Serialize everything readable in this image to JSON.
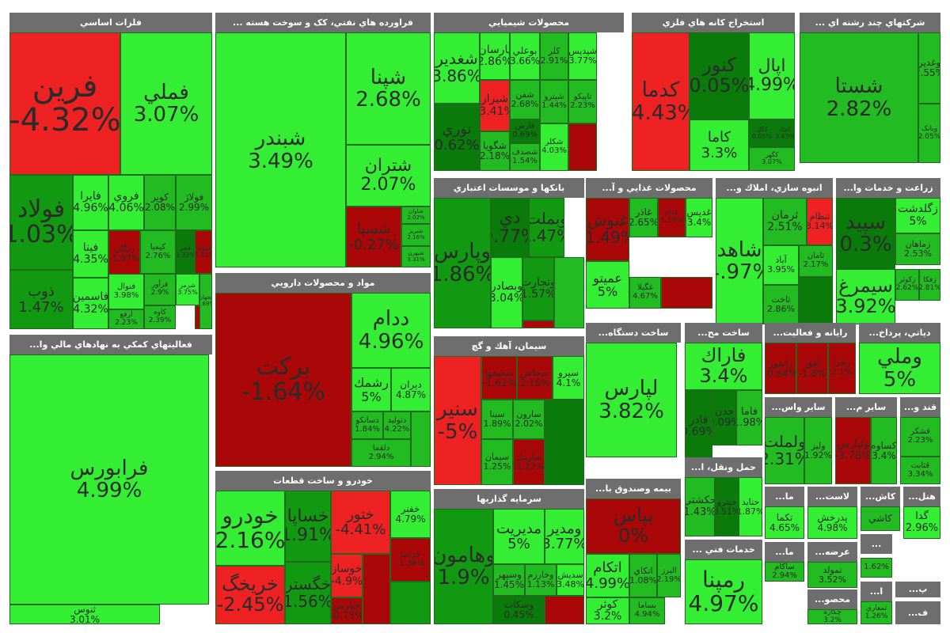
{
  "colors": {
    "bright_green": "#33ee33",
    "green": "#22bb22",
    "mid_green": "#119911",
    "dark_green": "#0a7a0a",
    "red": "#ee2222",
    "dark_red": "#aa0808",
    "header_bg": "#6e6e6e",
    "border": "#1f6a1f"
  },
  "sectors": [
    {
      "title": "فلزات اساسي",
      "tiles": [
        {
          "name": "فرين",
          "pct": "-4.32%",
          "c": "red"
        },
        {
          "name": "فملي",
          "pct": "3.07%",
          "c": "bright_green"
        },
        {
          "name": "فولاد",
          "pct": "1.03%",
          "c": "mid_green"
        },
        {
          "name": "فايرا",
          "pct": "4.96%",
          "c": "bright_green"
        },
        {
          "name": "فروي",
          "pct": "4.06%",
          "c": "bright_green"
        },
        {
          "name": "کوير",
          "pct": "2.08%",
          "c": "green"
        },
        {
          "name": "فولاژ",
          "pct": "2.99%",
          "c": "green"
        },
        {
          "name": "فينا",
          "pct": "4.35%",
          "c": "bright_green"
        },
        {
          "name": "زنگان",
          "pct": "-1.87%",
          "c": "dark_red"
        },
        {
          "name": "کيميا",
          "pct": "2.76%",
          "c": "green"
        },
        {
          "name": "فجر",
          "pct": "0.33%",
          "c": "dark_green"
        },
        {
          "name": "فلوله",
          "pct": "-0.91%",
          "c": "dark_red"
        },
        {
          "name": "ذوب",
          "pct": "1.47%",
          "c": "mid_green"
        },
        {
          "name": "فاسمين",
          "pct": "4.32%",
          "c": "bright_green"
        },
        {
          "name": "فنوال",
          "pct": "3.98%",
          "c": "bright_green"
        },
        {
          "name": "فرآور",
          "pct": "2.9%",
          "c": "green"
        },
        {
          "name": "ارفع",
          "pct": "2.23%",
          "c": "green"
        },
        {
          "name": "کاوه",
          "pct": "2.39%",
          "c": "green"
        },
        {
          "name": "شرمز",
          "pct": "3.75%",
          "c": "bright_green"
        },
        {
          "name": "فجهان",
          "pct": "3.69%",
          "c": "green"
        }
      ]
    },
    {
      "title": "... فراورده هاي نفتي، کک و سوخت هسته",
      "tiles": [
        {
          "name": "شبندر",
          "pct": "3.49%",
          "c": "bright_green"
        },
        {
          "name": "شپنا",
          "pct": "2.68%",
          "c": "bright_green"
        },
        {
          "name": "شتران",
          "pct": "2.07%",
          "c": "bright_green"
        },
        {
          "name": "شسپا",
          "pct": "-0.27%",
          "c": "dark_red"
        },
        {
          "name": "شاوان",
          "pct": "2.02%",
          "c": "green"
        },
        {
          "name": "شبريز",
          "pct": "2.16%",
          "c": "green"
        },
        {
          "name": "شبهرن",
          "pct": "3.31%",
          "c": "green"
        }
      ]
    },
    {
      "title": "محصولات شيميايي",
      "tiles": [
        {
          "name": "شغدير",
          "pct": "3.86%",
          "c": "bright_green"
        },
        {
          "name": "پارسان",
          "pct": "2.86%",
          "c": "bright_green"
        },
        {
          "name": "بوعلي",
          "pct": "3.66%",
          "c": "bright_green"
        },
        {
          "name": "کلر",
          "pct": "2.91%",
          "c": "green"
        },
        {
          "name": "شپديس",
          "pct": "3.77%",
          "c": "bright_green"
        },
        {
          "name": "نوري",
          "pct": "0.62%",
          "c": "dark_green"
        },
        {
          "name": "شيراز",
          "pct": "-3.41%",
          "c": "red"
        },
        {
          "name": "شفن",
          "pct": "2.68%",
          "c": "green"
        },
        {
          "name": "فارس",
          "pct": "0.69%",
          "c": "dark_green"
        },
        {
          "name": "شگويا",
          "pct": "2.18%",
          "c": "green"
        },
        {
          "name": "شپترو",
          "pct": "1.44%",
          "c": "green"
        },
        {
          "name": "تاپيکو",
          "pct": "2.23%",
          "c": "green"
        },
        {
          "name": "شصدف",
          "pct": "1.54%",
          "c": "green"
        },
        {
          "name": "شکلر",
          "pct": "4.03%",
          "c": "bright_green"
        }
      ]
    },
    {
      "title": "استخراج کانه هاي فلزي",
      "tiles": [
        {
          "name": "کدما",
          "pct": "-4.43%",
          "c": "red"
        },
        {
          "name": "کنور",
          "pct": "0.05%",
          "c": "dark_green"
        },
        {
          "name": "اپال",
          "pct": "4.99%",
          "c": "bright_green"
        },
        {
          "name": "کاما",
          "pct": "3.3%",
          "c": "bright_green"
        },
        {
          "name": "کگل",
          "pct": "0.05%",
          "c": "dark_green"
        },
        {
          "name": "کچاد",
          "pct": "0.43%",
          "c": "dark_green"
        },
        {
          "name": "کگهر",
          "pct": "3.07%",
          "c": "green"
        }
      ]
    },
    {
      "title": "... شرکتهاي چند رشته اي",
      "tiles": [
        {
          "name": "شستا",
          "pct": "2.82%",
          "c": "green"
        },
        {
          "name": "وغدير",
          "pct": "2.55%",
          "c": "green"
        },
        {
          "name": "وبانک",
          "pct": "2.05%",
          "c": "green"
        }
      ]
    },
    {
      "title": "...فعاليتهاي کمکي به نهادهاي مالي وا",
      "tiles": [
        {
          "name": "فرابورس",
          "pct": "4.99%",
          "c": "bright_green"
        },
        {
          "name": "ثنوس",
          "pct": "3.01%",
          "c": "bright_green"
        }
      ]
    },
    {
      "title": "مواد و محصولات دارويي",
      "tiles": [
        {
          "name": "برکت",
          "pct": "-1.64%",
          "c": "dark_red"
        },
        {
          "name": "ددام",
          "pct": "4.96%",
          "c": "bright_green"
        },
        {
          "name": "رشمك",
          "pct": "5%",
          "c": "bright_green"
        },
        {
          "name": "ديران",
          "pct": "4.87%",
          "c": "bright_green"
        },
        {
          "name": "دسانکو",
          "pct": "1.84%",
          "c": "green"
        },
        {
          "name": "دتوليد",
          "pct": "4.22%",
          "c": "green"
        },
        {
          "name": "دلقما",
          "pct": "2.94%",
          "c": "green"
        }
      ]
    },
    {
      "title": "خودرو و ساخت قطعات",
      "tiles": [
        {
          "name": "خودرو",
          "pct": "2.16%",
          "c": "bright_green"
        },
        {
          "name": "خساپا",
          "pct": "1.91%",
          "c": "mid_green"
        },
        {
          "name": "ختور",
          "pct": "-4.41%",
          "c": "red"
        },
        {
          "name": "خفنر",
          "pct": "4.79%",
          "c": "bright_green"
        },
        {
          "name": "خزاميا",
          "pct": "-1.38%",
          "c": "dark_red"
        },
        {
          "name": "خريخگ",
          "pct": "-2.45%",
          "c": "red"
        },
        {
          "name": "خگستر",
          "pct": "1.56%",
          "c": "mid_green"
        },
        {
          "name": "خوساز",
          "pct": "-4.9%",
          "c": "red"
        },
        {
          "name": "خپارس",
          "pct": "-0.75%",
          "c": "dark_red"
        }
      ]
    },
    {
      "title": "بانکها و موسسات اعتباري",
      "tiles": [
        {
          "name": "وپارس",
          "pct": "1.86%",
          "c": "mid_green"
        },
        {
          "name": "دي",
          "pct": "0.77%",
          "c": "dark_green"
        },
        {
          "name": "وبملت",
          "pct": "1.47%",
          "c": "mid_green"
        },
        {
          "name": "وبصادر",
          "pct": "3.04%",
          "c": "bright_green"
        },
        {
          "name": "وتجارت",
          "pct": "1.57%",
          "c": "mid_green"
        }
      ]
    },
    {
      "title": "...محصولات غذايي و آ",
      "tiles": [
        {
          "name": "غنوش",
          "pct": "-1.49%",
          "c": "dark_red"
        },
        {
          "name": "غاذر",
          "pct": "2.65%",
          "c": "green"
        },
        {
          "name": "غدام",
          "pct": "1.15%",
          "c": "dark_red"
        },
        {
          "name": "غديس",
          "pct": "3.4%",
          "c": "bright_green"
        },
        {
          "name": "عميتو",
          "pct": "5%",
          "c": "bright_green"
        },
        {
          "name": "غگيلا",
          "pct": "4.67%",
          "c": "green"
        }
      ]
    },
    {
      "title": "...انبوه سازي، املاك و",
      "tiles": [
        {
          "name": "شاهد",
          "pct": "4.97%",
          "c": "bright_green"
        },
        {
          "name": "ثرمان",
          "pct": "2.51%",
          "c": "green"
        },
        {
          "name": "آباد",
          "pct": "3.95%",
          "c": "bright_green"
        },
        {
          "name": "ثامان",
          "pct": "2.17%",
          "c": "green"
        },
        {
          "name": "ثاخت",
          "pct": "2.86%",
          "c": "green"
        },
        {
          "name": "ثنظام",
          "pct": "3.14%",
          "c": "red"
        }
      ]
    },
    {
      "title": "...زراعت و خدمات وا",
      "tiles": [
        {
          "name": "سپيد",
          "pct": "0.3%",
          "c": "dark_green"
        },
        {
          "name": "زگلدشت",
          "pct": "5%",
          "c": "bright_green"
        },
        {
          "name": "زماهان",
          "pct": "2.53%",
          "c": "green"
        },
        {
          "name": "سيمرغ",
          "pct": "3.92%",
          "c": "bright_green"
        },
        {
          "name": "زکوثر",
          "pct": "2.62%",
          "c": "green"
        },
        {
          "name": "زفکا",
          "pct": "2.81%",
          "c": "green"
        }
      ]
    },
    {
      "title": "سيمان، آهك و گچ",
      "tiles": [
        {
          "name": "سنير",
          "pct": "-5%",
          "c": "red"
        },
        {
          "name": "سصفها",
          "pct": "-1.62%",
          "c": "dark_red"
        },
        {
          "name": "سخاش",
          "pct": "2.16%",
          "c": "dark_red"
        },
        {
          "name": "سيرو",
          "pct": "4.1%",
          "c": "bright_green"
        },
        {
          "name": "سبنا",
          "pct": "1.89%",
          "c": "green"
        },
        {
          "name": "سارون",
          "pct": "2.02%",
          "c": "green"
        },
        {
          "name": "سيمان",
          "pct": "1.25%",
          "c": "green"
        },
        {
          "name": "ساربيل",
          "pct": "-1.27%",
          "c": "dark_red"
        }
      ]
    },
    {
      "title": "...ساخت دستگاه",
      "tiles": [
        {
          "name": "لپارس",
          "pct": "3.82%",
          "c": "bright_green"
        }
      ]
    },
    {
      "title": "...ساخت مح",
      "tiles": [
        {
          "name": "فاراك",
          "pct": "3.4%",
          "c": "bright_green"
        },
        {
          "name": "قادر",
          "pct": "0.69%",
          "c": "dark_green"
        },
        {
          "name": "جدن",
          "pct": "0.09%",
          "c": "dark_green"
        },
        {
          "name": "فاما",
          "pct": "1.98%",
          "c": "green"
        }
      ]
    },
    {
      "title": "...رايانه و فعاليت",
      "tiles": [
        {
          "name": "رانفور",
          "pct": "-0.64%",
          "c": "dark_red"
        },
        {
          "name": "افق",
          "pct": "-1.8%",
          "c": "dark_red"
        },
        {
          "name": "رافزا",
          "pct": "2.1%",
          "c": "dark_red"
        }
      ]
    },
    {
      "title": "...دياتي، پرداخ",
      "tiles": [
        {
          "name": "وملي",
          "pct": "5%",
          "c": "bright_green"
        }
      ]
    },
    {
      "title": "...ساير واس",
      "tiles": [
        {
          "name": "ولملت",
          "pct": "2.31%",
          "c": "green"
        },
        {
          "name": "وليز",
          "pct": "1.92%",
          "c": "green"
        }
      ]
    },
    {
      "title": "...ساير م",
      "tiles": [
        {
          "name": "ولپارس",
          "pct": "-3.78%",
          "c": "dark_red"
        },
        {
          "name": "کساوه",
          "pct": "3.4%",
          "c": "green"
        }
      ]
    },
    {
      "title": "...قند و",
      "tiles": [
        {
          "name": "قشکر",
          "pct": "2.23%",
          "c": "green"
        },
        {
          "name": "قثابت",
          "pct": "3.34%",
          "c": "green"
        }
      ]
    },
    {
      "title": "...بيمه وصندوق با",
      "tiles": [
        {
          "name": "بپاس",
          "pct": "0%",
          "c": "dark_red"
        },
        {
          "name": "اتکام",
          "pct": "4.99%",
          "c": "bright_green"
        },
        {
          "name": "اتکاي",
          "pct": "1.08%",
          "c": "green"
        },
        {
          "name": "البرز",
          "pct": "2.19%",
          "c": "green"
        },
        {
          "name": "کوثر",
          "pct": "3.2%",
          "c": "bright_green"
        },
        {
          "name": "بساما",
          "pct": "4.94%",
          "c": "green"
        }
      ]
    },
    {
      "title": "سرمايه گذاريها",
      "tiles": [
        {
          "name": "وهامون",
          "pct": "1.9%",
          "c": "mid_green"
        },
        {
          "name": "مديريت",
          "pct": "5%",
          "c": "bright_green"
        },
        {
          "name": "ومدير",
          "pct": "3.77%",
          "c": "bright_green"
        },
        {
          "name": "وسپهر",
          "pct": "1.45%",
          "c": "green"
        },
        {
          "name": "وخارزم",
          "pct": "1.13%",
          "c": "green"
        },
        {
          "name": "سديش",
          "pct": "3.48%",
          "c": "bright_green"
        },
        {
          "name": "وسکاب",
          "pct": "0.45%",
          "c": "dark_green"
        }
      ]
    },
    {
      "title": "...حمل ونقل، ا",
      "tiles": [
        {
          "name": "حکشتي",
          "pct": "1.43%",
          "c": "green"
        },
        {
          "name": "حپترو",
          "pct": "0.51%",
          "c": "dark_green"
        },
        {
          "name": "حتايد",
          "pct": "1.87%",
          "c": "bright_green"
        }
      ]
    },
    {
      "title": "... خدمات فني",
      "tiles": [
        {
          "name": "رمپنا",
          "pct": "4.97%",
          "c": "bright_green"
        }
      ]
    },
    {
      "title": "...ما",
      "tiles": [
        {
          "name": "تکما",
          "pct": "4.65%",
          "c": "bright_green"
        }
      ]
    },
    {
      "title": "...لاست",
      "tiles": [
        {
          "name": "پدرخش",
          "pct": "4.98%",
          "c": "bright_green"
        }
      ]
    },
    {
      "title": "...کاش",
      "tiles": [
        {
          "name": "کاشي",
          "pct": "",
          "c": "green"
        }
      ]
    },
    {
      "title": "...هتل",
      "tiles": [
        {
          "name": "گدا",
          "pct": "2.96%",
          "c": "bright_green"
        }
      ]
    },
    {
      "title": "...ما",
      "tiles": [
        {
          "name": "ساکام",
          "pct": "2.94%",
          "c": "green"
        }
      ]
    },
    {
      "title": "...عرضه",
      "tiles": [
        {
          "name": "تمولد",
          "pct": "3.52%",
          "c": "green"
        }
      ]
    },
    {
      "title": "...",
      "tiles": [
        {
          "name": "",
          "pct": "",
          "c": "green"
        }
      ]
    },
    {
      "title": "...",
      "tiles": [
        {
          "name": "",
          "pct": "1.62%",
          "c": "green"
        }
      ]
    },
    {
      "title": "...محصو",
      "tiles": [
        {
          "name": "چکاره",
          "pct": "3.2%",
          "c": "green"
        }
      ]
    },
    {
      "title": "...ا",
      "tiles": [
        {
          "name": "ثمعاري",
          "pct": "1.26%",
          "c": "green"
        }
      ]
    },
    {
      "title": "...پ",
      "tiles": []
    },
    {
      "title": "...ف",
      "tiles": []
    }
  ]
}
